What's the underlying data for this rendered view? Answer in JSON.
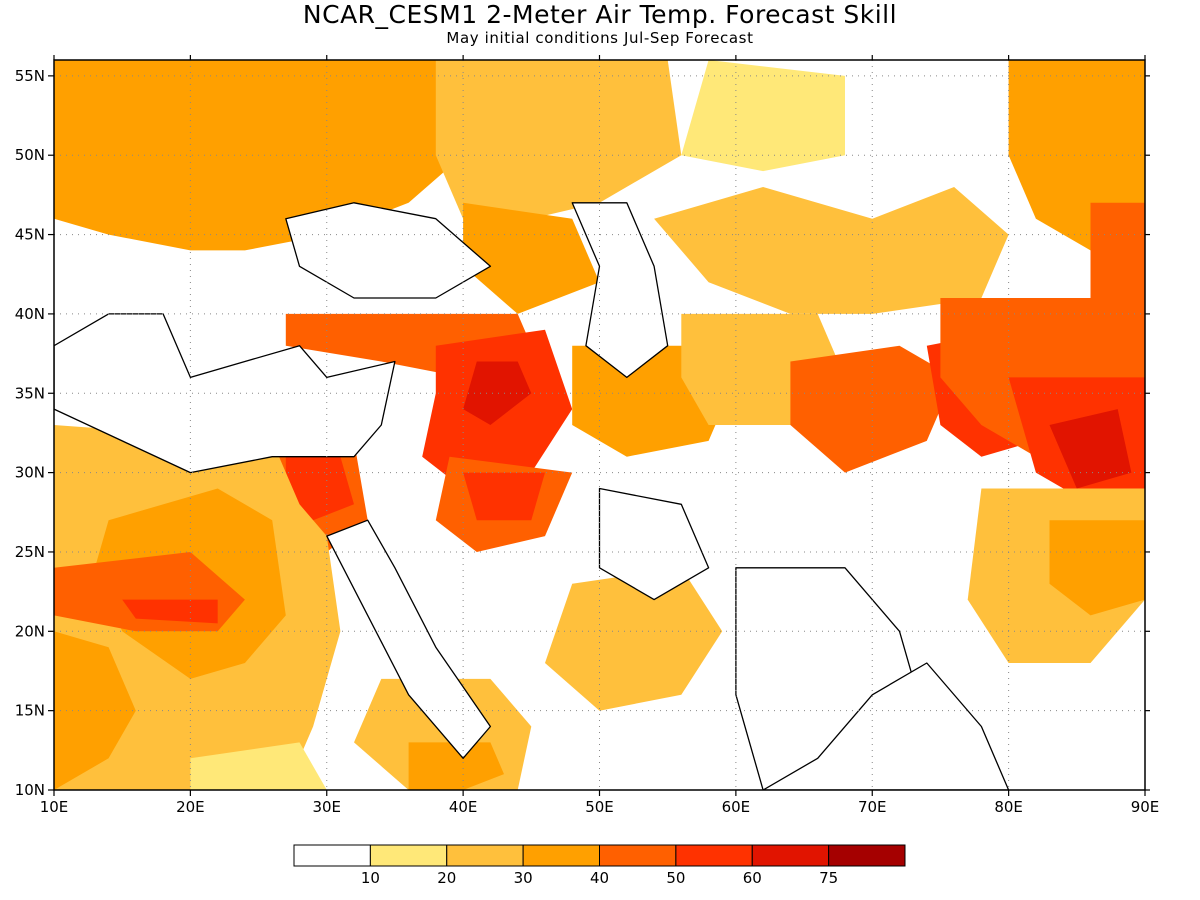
{
  "title": "NCAR_CESM1 2-Meter Air Temp. Forecast Skill",
  "subtitle": "May initial conditions  Jul-Sep Forecast",
  "map": {
    "lon_range": [
      10,
      90
    ],
    "lat_range": [
      10,
      56
    ],
    "lon_ticks": [
      {
        "value": 10,
        "label": "10E"
      },
      {
        "value": 20,
        "label": "20E"
      },
      {
        "value": 30,
        "label": "30E"
      },
      {
        "value": 40,
        "label": "40E"
      },
      {
        "value": 50,
        "label": "50E"
      },
      {
        "value": 60,
        "label": "60E"
      },
      {
        "value": 70,
        "label": "70E"
      },
      {
        "value": 80,
        "label": "80E"
      },
      {
        "value": 90,
        "label": "90E"
      }
    ],
    "lat_ticks": [
      {
        "value": 10,
        "label": "10N"
      },
      {
        "value": 15,
        "label": "15N"
      },
      {
        "value": 20,
        "label": "20N"
      },
      {
        "value": 25,
        "label": "25N"
      },
      {
        "value": 30,
        "label": "30N"
      },
      {
        "value": 35,
        "label": "35N"
      },
      {
        "value": 40,
        "label": "40N"
      },
      {
        "value": 45,
        "label": "45N"
      },
      {
        "value": 50,
        "label": "50N"
      },
      {
        "value": 55,
        "label": "55N"
      }
    ],
    "gridlines": "dotted",
    "skill_regions": [
      {
        "level": 30,
        "polygon": [
          [
            10,
            56
          ],
          [
            38,
            56
          ],
          [
            40,
            50
          ],
          [
            36,
            47
          ],
          [
            30,
            45
          ],
          [
            24,
            44
          ],
          [
            20,
            44
          ],
          [
            14,
            45
          ],
          [
            10,
            46
          ]
        ]
      },
      {
        "level": 20,
        "polygon": [
          [
            38,
            56
          ],
          [
            55,
            56
          ],
          [
            56,
            50
          ],
          [
            50,
            47
          ],
          [
            45,
            46
          ],
          [
            40,
            46
          ],
          [
            38,
            50
          ]
        ]
      },
      {
        "level": 10,
        "polygon": [
          [
            58,
            56
          ],
          [
            68,
            55
          ],
          [
            68,
            50
          ],
          [
            62,
            49
          ],
          [
            56,
            50
          ]
        ]
      },
      {
        "level": 20,
        "polygon": [
          [
            62,
            48
          ],
          [
            70,
            46
          ],
          [
            76,
            48
          ],
          [
            80,
            45
          ],
          [
            78,
            41
          ],
          [
            70,
            40
          ],
          [
            64,
            40
          ],
          [
            58,
            42
          ],
          [
            54,
            46
          ]
        ]
      },
      {
        "level": 30,
        "polygon": [
          [
            80,
            56
          ],
          [
            90,
            56
          ],
          [
            90,
            46
          ],
          [
            86,
            44
          ],
          [
            82,
            46
          ],
          [
            80,
            50
          ]
        ]
      },
      {
        "level": 40,
        "polygon": [
          [
            86,
            47
          ],
          [
            90,
            47
          ],
          [
            90,
            40
          ],
          [
            86,
            41
          ]
        ]
      },
      {
        "level": 30,
        "polygon": [
          [
            40,
            47
          ],
          [
            48,
            46
          ],
          [
            50,
            42
          ],
          [
            44,
            40
          ],
          [
            40,
            43
          ]
        ]
      },
      {
        "level": 40,
        "polygon": [
          [
            27,
            40
          ],
          [
            44,
            40
          ],
          [
            46,
            36
          ],
          [
            40,
            36
          ],
          [
            34,
            37
          ],
          [
            27,
            38
          ]
        ]
      },
      {
        "level": 50,
        "polygon": [
          [
            38,
            38
          ],
          [
            46,
            39
          ],
          [
            48,
            34
          ],
          [
            45,
            30
          ],
          [
            40,
            29
          ],
          [
            37,
            31
          ],
          [
            38,
            35
          ]
        ]
      },
      {
        "level": 60,
        "polygon": [
          [
            41,
            37
          ],
          [
            44,
            37
          ],
          [
            45,
            35
          ],
          [
            42,
            33
          ],
          [
            40,
            34
          ]
        ]
      },
      {
        "level": 40,
        "polygon": [
          [
            39,
            31
          ],
          [
            48,
            30
          ],
          [
            46,
            26
          ],
          [
            41,
            25
          ],
          [
            38,
            27
          ]
        ]
      },
      {
        "level": 50,
        "polygon": [
          [
            40,
            30
          ],
          [
            46,
            30
          ],
          [
            45,
            27
          ],
          [
            41,
            27
          ]
        ]
      },
      {
        "level": 40,
        "polygon": [
          [
            26,
            31
          ],
          [
            32,
            32
          ],
          [
            33,
            27
          ],
          [
            30,
            25
          ],
          [
            27,
            26
          ]
        ]
      },
      {
        "level": 50,
        "polygon": [
          [
            27,
            31
          ],
          [
            31,
            31
          ],
          [
            32,
            28
          ],
          [
            29,
            27
          ],
          [
            27,
            28
          ]
        ]
      },
      {
        "level": 30,
        "polygon": [
          [
            48,
            38
          ],
          [
            56,
            38
          ],
          [
            60,
            36
          ],
          [
            58,
            32
          ],
          [
            52,
            31
          ],
          [
            48,
            33
          ]
        ]
      },
      {
        "level": 20,
        "polygon": [
          [
            56,
            40
          ],
          [
            66,
            40
          ],
          [
            68,
            36
          ],
          [
            64,
            33
          ],
          [
            58,
            33
          ],
          [
            56,
            36
          ]
        ]
      },
      {
        "level": 40,
        "polygon": [
          [
            64,
            37
          ],
          [
            72,
            38
          ],
          [
            76,
            36
          ],
          [
            74,
            32
          ],
          [
            68,
            30
          ],
          [
            64,
            33
          ]
        ]
      },
      {
        "level": 50,
        "polygon": [
          [
            74,
            38
          ],
          [
            80,
            39
          ],
          [
            84,
            36
          ],
          [
            82,
            32
          ],
          [
            78,
            31
          ],
          [
            75,
            33
          ]
        ]
      },
      {
        "level": 40,
        "polygon": [
          [
            75,
            41
          ],
          [
            90,
            41
          ],
          [
            90,
            32
          ],
          [
            86,
            30
          ],
          [
            82,
            31
          ],
          [
            78,
            33
          ],
          [
            75,
            36
          ]
        ]
      },
      {
        "level": 50,
        "polygon": [
          [
            80,
            36
          ],
          [
            90,
            36
          ],
          [
            90,
            29
          ],
          [
            86,
            28
          ],
          [
            82,
            30
          ]
        ]
      },
      {
        "level": 60,
        "polygon": [
          [
            83,
            33
          ],
          [
            88,
            34
          ],
          [
            89,
            30
          ],
          [
            85,
            29
          ]
        ]
      },
      {
        "level": 20,
        "polygon": [
          [
            78,
            29
          ],
          [
            90,
            29
          ],
          [
            90,
            22
          ],
          [
            86,
            18
          ],
          [
            80,
            18
          ],
          [
            77,
            22
          ]
        ]
      },
      {
        "level": 30,
        "polygon": [
          [
            83,
            27
          ],
          [
            90,
            27
          ],
          [
            90,
            22
          ],
          [
            86,
            21
          ],
          [
            83,
            23
          ]
        ]
      },
      {
        "level": 20,
        "polygon": [
          [
            10,
            33
          ],
          [
            26,
            32
          ],
          [
            28,
            28
          ],
          [
            30,
            26
          ],
          [
            31,
            20
          ],
          [
            29,
            14
          ],
          [
            27,
            10
          ],
          [
            10,
            10
          ]
        ]
      },
      {
        "level": 30,
        "polygon": [
          [
            14,
            27
          ],
          [
            22,
            29
          ],
          [
            26,
            27
          ],
          [
            27,
            21
          ],
          [
            24,
            18
          ],
          [
            20,
            17
          ],
          [
            15,
            20
          ],
          [
            13,
            24
          ]
        ]
      },
      {
        "level": 40,
        "polygon": [
          [
            10,
            24
          ],
          [
            20,
            25
          ],
          [
            24,
            22
          ],
          [
            22,
            20
          ],
          [
            16,
            20
          ],
          [
            10,
            21
          ]
        ]
      },
      {
        "level": 50,
        "polygon": [
          [
            15,
            22
          ],
          [
            22,
            22
          ],
          [
            22,
            20.5
          ],
          [
            16,
            20.8
          ]
        ]
      },
      {
        "level": 30,
        "polygon": [
          [
            10,
            20
          ],
          [
            14,
            19
          ],
          [
            16,
            15
          ],
          [
            14,
            12
          ],
          [
            10,
            10
          ]
        ]
      },
      {
        "level": 20,
        "polygon": [
          [
            34,
            17
          ],
          [
            42,
            17
          ],
          [
            45,
            14
          ],
          [
            44,
            10
          ],
          [
            36,
            10
          ],
          [
            32,
            13
          ]
        ]
      },
      {
        "level": 30,
        "polygon": [
          [
            36,
            13
          ],
          [
            42,
            13
          ],
          [
            43,
            11
          ],
          [
            40,
            10
          ],
          [
            36,
            10
          ]
        ]
      },
      {
        "level": 20,
        "polygon": [
          [
            48,
            23
          ],
          [
            56,
            24
          ],
          [
            59,
            20
          ],
          [
            56,
            16
          ],
          [
            50,
            15
          ],
          [
            46,
            18
          ]
        ]
      },
      {
        "level": 10,
        "polygon": [
          [
            20,
            12
          ],
          [
            28,
            13
          ],
          [
            30,
            10
          ],
          [
            20,
            10
          ]
        ]
      }
    ],
    "land_masks": [
      [
        [
          10,
          38
        ],
        [
          14,
          40
        ],
        [
          18,
          40
        ],
        [
          20,
          36
        ],
        [
          24,
          37
        ],
        [
          28,
          38
        ],
        [
          30,
          36
        ],
        [
          35,
          37
        ],
        [
          34,
          33
        ],
        [
          32,
          31
        ],
        [
          26,
          31
        ],
        [
          20,
          30
        ],
        [
          15,
          32
        ],
        [
          10,
          34
        ]
      ],
      [
        [
          27,
          46
        ],
        [
          32,
          47
        ],
        [
          38,
          46
        ],
        [
          42,
          43
        ],
        [
          38,
          41
        ],
        [
          32,
          41
        ],
        [
          28,
          43
        ]
      ],
      [
        [
          48,
          47
        ],
        [
          52,
          47
        ],
        [
          54,
          43
        ],
        [
          55,
          38
        ],
        [
          52,
          36
        ],
        [
          49,
          38
        ],
        [
          50,
          43
        ]
      ],
      [
        [
          30,
          26
        ],
        [
          33,
          27
        ],
        [
          35,
          24
        ],
        [
          38,
          19
        ],
        [
          42,
          14
        ],
        [
          40,
          12
        ],
        [
          36,
          16
        ],
        [
          33,
          21
        ]
      ],
      [
        [
          50,
          29
        ],
        [
          56,
          28
        ],
        [
          58,
          24
        ],
        [
          54,
          22
        ],
        [
          50,
          24
        ]
      ],
      [
        [
          60,
          24
        ],
        [
          68,
          24
        ],
        [
          72,
          20
        ],
        [
          74,
          14
        ],
        [
          70,
          10
        ],
        [
          62,
          10
        ],
        [
          60,
          16
        ]
      ],
      [
        [
          62,
          10
        ],
        [
          80,
          10
        ],
        [
          78,
          14
        ],
        [
          74,
          18
        ],
        [
          70,
          16
        ],
        [
          66,
          12
        ]
      ]
    ]
  },
  "colorbar": {
    "colors": [
      "#ffffff",
      "#ffe878",
      "#ffc03c",
      "#ffa000",
      "#ff6000",
      "#ff3200",
      "#e11400",
      "#a50000"
    ],
    "labels": [
      "10",
      "20",
      "30",
      "40",
      "50",
      "60",
      "75"
    ]
  }
}
